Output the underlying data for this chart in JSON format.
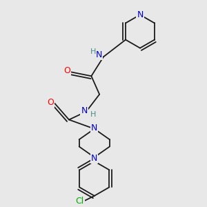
{
  "bg_color": "#e8e8e8",
  "atom_colors": {
    "N": "#0000cc",
    "O": "#ff0000",
    "Cl": "#00aa00",
    "C": "#000000",
    "H": "#4a8a8a"
  },
  "bond_color": "#1a1a1a",
  "font_size_atom": 8.5
}
